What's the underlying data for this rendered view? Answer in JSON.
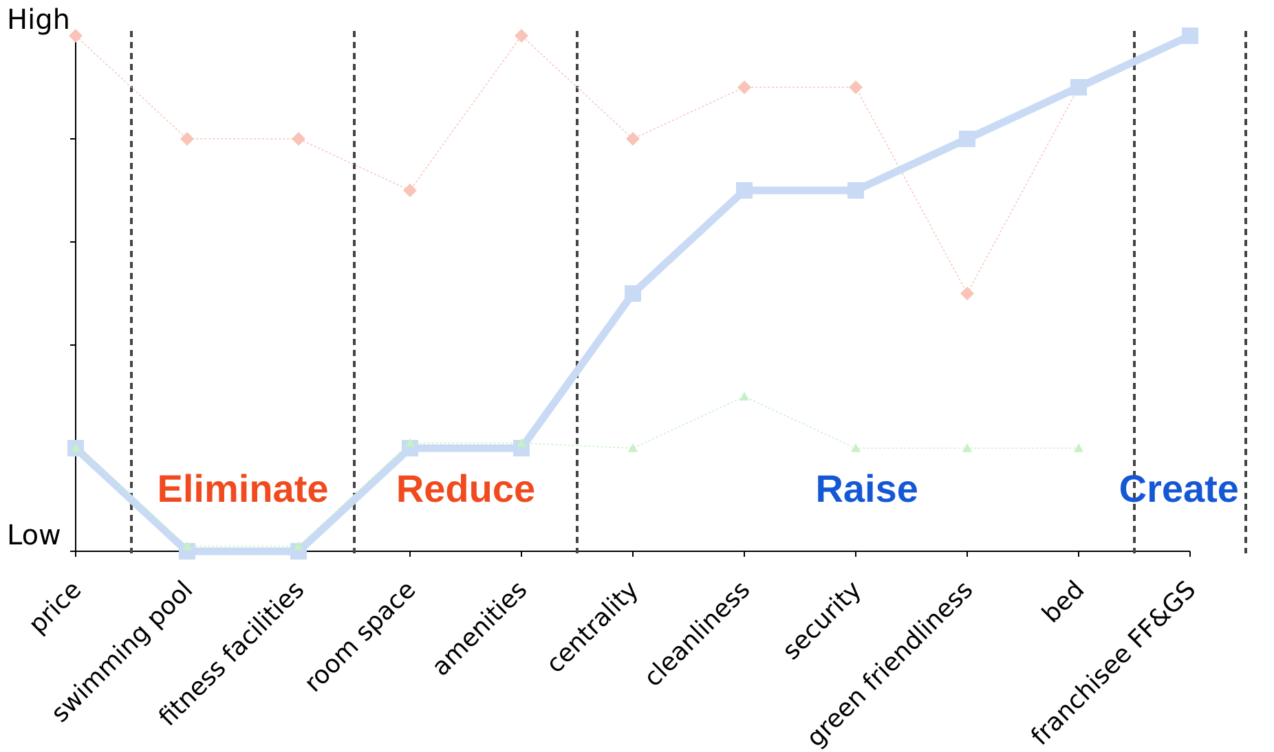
{
  "chart_data": {
    "type": "line",
    "title": "",
    "xlabel": "",
    "ylabel": "",
    "y_end_labels": {
      "high": "High",
      "low": "Low"
    },
    "ylim": [
      0,
      5
    ],
    "grid": false,
    "legend": "none",
    "categories": [
      "price",
      "swimming pool",
      "fitness facilities",
      "room space",
      "amenities",
      "centrality",
      "cleanliness",
      "security",
      "green friendliness",
      "bed",
      "franchisee FF&GS"
    ],
    "series": [
      {
        "marker": "diamond",
        "color": "#f9c3b8",
        "values": [
          5,
          4,
          4,
          3.5,
          5,
          4,
          4.5,
          4.5,
          2.5,
          4.5,
          null
        ]
      },
      {
        "marker": "square",
        "color": "#c8daf4",
        "values": [
          1,
          0,
          0,
          1,
          1,
          2.5,
          3.5,
          3.5,
          4,
          4.5,
          5
        ]
      },
      {
        "marker": "triangle",
        "color": "#c6f0c6",
        "values": [
          1,
          0.05,
          0.05,
          1.05,
          1.05,
          1,
          1.5,
          1,
          1,
          1,
          null
        ]
      }
    ],
    "regions": [
      {
        "label": "Eliminate",
        "color": "#f04a1e",
        "center": 1.5
      },
      {
        "label": "Reduce",
        "color": "#f04a1e",
        "center": 3.5
      },
      {
        "label": "Raise",
        "color": "#1558d6",
        "center": 7.1
      },
      {
        "label": "Create",
        "color": "#1558d6",
        "center": 9.9
      }
    ],
    "dividers_after": [
      0.5,
      2.5,
      4.5,
      9.5,
      10.5
    ]
  }
}
